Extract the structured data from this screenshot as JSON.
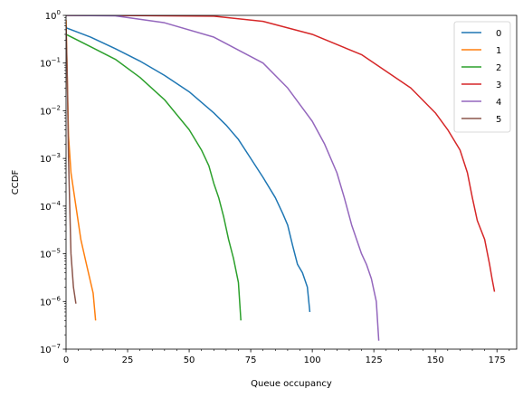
{
  "chart_data": {
    "type": "line",
    "title": "",
    "xlabel": "Queue occupancy",
    "ylabel": "CCDF",
    "xlim": [
      0,
      183
    ],
    "ylim": [
      1e-07,
      1
    ],
    "yscale": "log",
    "legend_position": "top-right",
    "grid": false,
    "x_ticks": [
      {
        "value": 0,
        "label": "0"
      },
      {
        "value": 25,
        "label": "25"
      },
      {
        "value": 50,
        "label": "50"
      },
      {
        "value": 75,
        "label": "75"
      },
      {
        "value": 100,
        "label": "100"
      },
      {
        "value": 125,
        "label": "125"
      },
      {
        "value": 150,
        "label": "150"
      },
      {
        "value": 175,
        "label": "175"
      }
    ],
    "y_ticks": [
      {
        "value": 1e-07,
        "base": "10",
        "exp": "−7"
      },
      {
        "value": 1e-06,
        "base": "10",
        "exp": "−6"
      },
      {
        "value": 1e-05,
        "base": "10",
        "exp": "−5"
      },
      {
        "value": 0.0001,
        "base": "10",
        "exp": "−4"
      },
      {
        "value": 0.001,
        "base": "10",
        "exp": "−3"
      },
      {
        "value": 0.01,
        "base": "10",
        "exp": "−2"
      },
      {
        "value": 0.1,
        "base": "10",
        "exp": "−1"
      },
      {
        "value": 1,
        "base": "10",
        "exp": "0"
      }
    ],
    "series": [
      {
        "name": "0",
        "color": "#1f77b4",
        "points": [
          [
            0,
            0.55
          ],
          [
            10,
            0.35
          ],
          [
            20,
            0.2
          ],
          [
            30,
            0.11
          ],
          [
            40,
            0.055
          ],
          [
            50,
            0.025
          ],
          [
            60,
            0.009
          ],
          [
            65,
            0.005
          ],
          [
            70,
            0.0025
          ],
          [
            75,
            0.001
          ],
          [
            80,
            0.0004
          ],
          [
            85,
            0.00015
          ],
          [
            88,
            7e-05
          ],
          [
            90,
            4e-05
          ],
          [
            92,
            1.5e-05
          ],
          [
            94,
            6e-06
          ],
          [
            96,
            4e-06
          ],
          [
            98,
            2e-06
          ],
          [
            99,
            6e-07
          ]
        ]
      },
      {
        "name": "1",
        "color": "#ff7f0e",
        "points": [
          [
            0,
            0.8
          ],
          [
            0.5,
            0.05
          ],
          [
            1,
            0.003
          ],
          [
            2,
            0.0005
          ],
          [
            4,
            0.0001
          ],
          [
            6,
            2e-05
          ],
          [
            8,
            7e-06
          ],
          [
            10,
            2.5e-06
          ],
          [
            11,
            1.5e-06
          ],
          [
            12,
            4e-07
          ]
        ]
      },
      {
        "name": "2",
        "color": "#2ca02c",
        "points": [
          [
            0,
            0.4
          ],
          [
            10,
            0.22
          ],
          [
            20,
            0.12
          ],
          [
            30,
            0.05
          ],
          [
            40,
            0.017
          ],
          [
            50,
            0.004
          ],
          [
            55,
            0.0015
          ],
          [
            58,
            0.0007
          ],
          [
            60,
            0.0003
          ],
          [
            62,
            0.00015
          ],
          [
            64,
            6e-05
          ],
          [
            66,
            2e-05
          ],
          [
            68,
            8e-06
          ],
          [
            70,
            2.5e-06
          ],
          [
            71,
            4e-07
          ]
        ]
      },
      {
        "name": "3",
        "color": "#d62728",
        "points": [
          [
            0,
            1
          ],
          [
            30,
            0.99
          ],
          [
            60,
            0.96
          ],
          [
            80,
            0.75
          ],
          [
            100,
            0.4
          ],
          [
            120,
            0.15
          ],
          [
            140,
            0.03
          ],
          [
            150,
            0.009
          ],
          [
            155,
            0.004
          ],
          [
            160,
            0.0015
          ],
          [
            163,
            0.0005
          ],
          [
            165,
            0.00015
          ],
          [
            167,
            5e-05
          ],
          [
            170,
            2e-05
          ],
          [
            172,
            6e-06
          ],
          [
            173,
            3e-06
          ],
          [
            174,
            1.6e-06
          ]
        ]
      },
      {
        "name": "4",
        "color": "#9467bd",
        "points": [
          [
            0,
            1
          ],
          [
            20,
            0.98
          ],
          [
            40,
            0.7
          ],
          [
            60,
            0.35
          ],
          [
            80,
            0.1
          ],
          [
            90,
            0.03
          ],
          [
            100,
            0.006
          ],
          [
            105,
            0.002
          ],
          [
            110,
            0.0005
          ],
          [
            113,
            0.00015
          ],
          [
            116,
            4e-05
          ],
          [
            118,
            2e-05
          ],
          [
            120,
            1e-05
          ],
          [
            122,
            6e-06
          ],
          [
            124,
            3e-06
          ],
          [
            126,
            1e-06
          ],
          [
            127,
            1.5e-07
          ]
        ]
      },
      {
        "name": "5",
        "color": "#8c564b",
        "points": [
          [
            0,
            0.6
          ],
          [
            0.5,
            0.05
          ],
          [
            1,
            0.001
          ],
          [
            1.5,
            0.0001
          ],
          [
            2,
            1e-05
          ],
          [
            3,
            2e-06
          ],
          [
            4,
            9e-07
          ]
        ]
      }
    ]
  }
}
